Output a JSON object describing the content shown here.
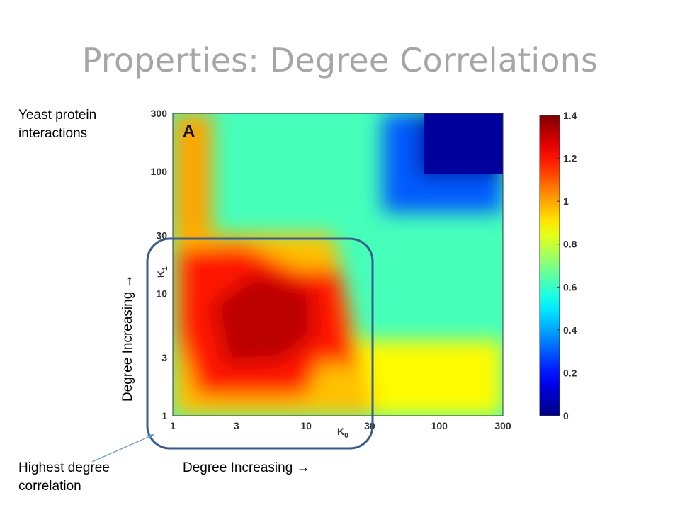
{
  "slide": {
    "title": "Properties: Degree Correlations"
  },
  "notes": {
    "dataset_line1": "Yeast protein",
    "dataset_line2": "interactions",
    "highlight_line1": "Highest degree",
    "highlight_line2": "correlation",
    "x_direction": "Degree Increasing →",
    "y_direction": "Degree Increasing →"
  },
  "chart_data": {
    "type": "heatmap",
    "panel_label": "A",
    "xlabel": "K0",
    "ylabel": "K1",
    "x_scale": "log",
    "y_scale": "log",
    "xlim": [
      1,
      300
    ],
    "ylim": [
      1,
      300
    ],
    "x_ticks": [
      1,
      3,
      10,
      30,
      100,
      300
    ],
    "y_ticks": [
      1,
      3,
      10,
      30,
      100,
      300
    ],
    "colorbar": {
      "min": 0,
      "max": 1.4,
      "ticks": [
        0,
        0.2,
        0.4,
        0.6,
        0.8,
        1,
        1.2,
        1.4
      ],
      "colormap": "jet"
    },
    "grid": false,
    "highlight_region": {
      "x": [
        1,
        30
      ],
      "y": [
        1,
        30
      ],
      "label": "Highest degree correlation"
    }
  },
  "colors": {
    "title": "#a6a6a6",
    "highlight_box": "#3a5e8c",
    "arrow": "#5b8fc9"
  }
}
